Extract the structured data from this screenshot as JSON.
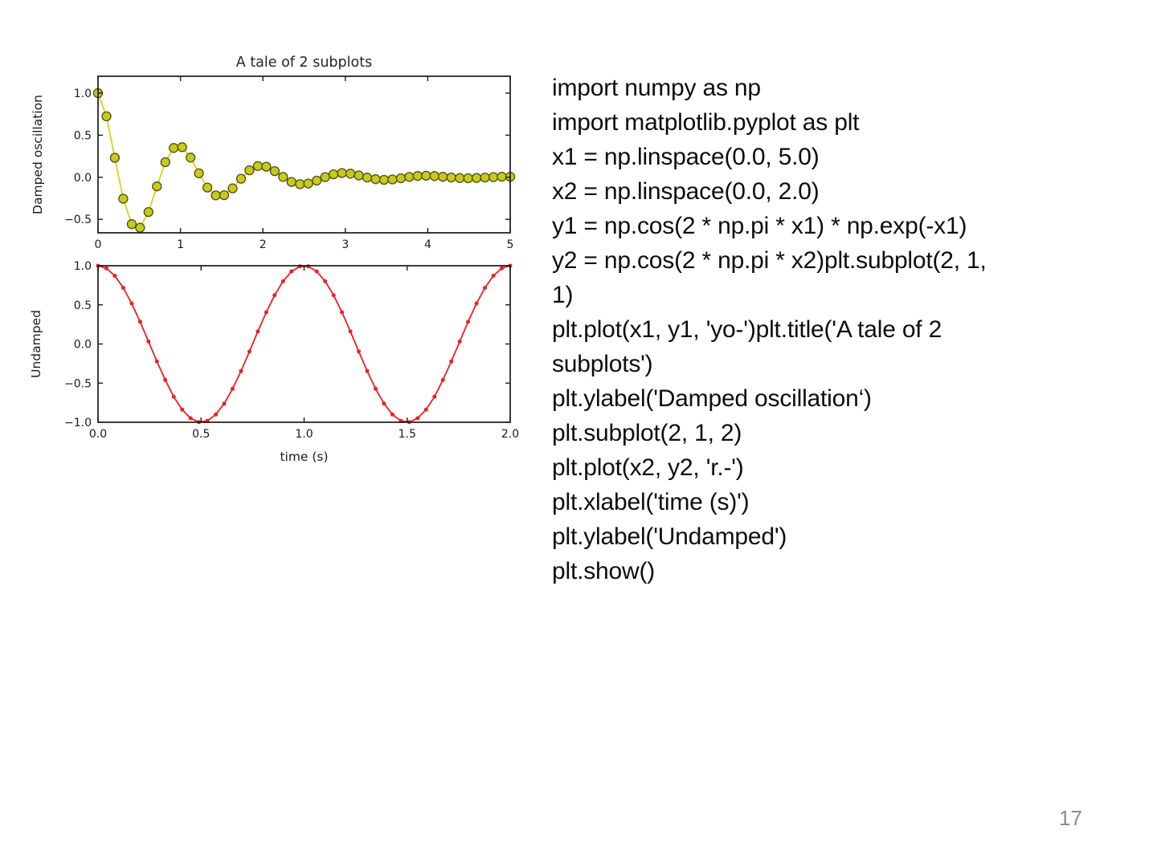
{
  "page": {
    "number": "17"
  },
  "code_block": {
    "lines": [
      "import numpy as np",
      "import matplotlib.pyplot as plt",
      "x1 = np.linspace(0.0, 5.0)",
      "x2 = np.linspace(0.0, 2.0)",
      "y1 = np.cos(2 * np.pi * x1) * np.exp(-x1)",
      "y2 = np.cos(2 * np.pi * x2)plt.subplot(2, 1,",
      "1)",
      "plt.plot(x1, y1, 'yo-')plt.title('A tale of 2",
      "subplots')",
      "plt.ylabel('Damped oscillation‘)",
      "plt.subplot(2, 1, 2)",
      "plt.plot(x2, y2, 'r.-')",
      "plt.xlabel('time (s)')",
      "plt.ylabel('Undamped')",
      "plt.show()"
    ]
  },
  "chart_data": [
    {
      "type": "line",
      "title": "A tale of 2 subplots",
      "xlabel": "",
      "ylabel": "Damped oscillation",
      "legend": null,
      "grid": false,
      "style": "yo-",
      "line_color": "#d3d320",
      "marker": "circle",
      "marker_fill": "#c6ca1d",
      "marker_edge": "#4f4f12",
      "marker_size": 11,
      "xlim": [
        0,
        5
      ],
      "ylim": [
        -0.66,
        1.2
      ],
      "xticks": {
        "values": [
          0,
          1,
          2,
          3,
          4,
          5
        ],
        "labels": [
          "0",
          "1",
          "2",
          "3",
          "4",
          "5"
        ]
      },
      "yticks": {
        "values": [
          1.0,
          0.5,
          0.0,
          -0.5
        ],
        "labels": [
          "1.0",
          "0.5",
          "0.0",
          "−0.5"
        ]
      },
      "x": [
        0,
        0.102,
        0.2041,
        0.3061,
        0.4082,
        0.5102,
        0.6122,
        0.7143,
        0.8163,
        0.9184,
        1.0204,
        1.1224,
        1.2245,
        1.3265,
        1.4286,
        1.5306,
        1.6327,
        1.7347,
        1.8367,
        1.9388,
        2.0408,
        2.1429,
        2.2449,
        2.3469,
        2.449,
        2.551,
        2.6531,
        2.7551,
        2.8571,
        2.9592,
        3.0612,
        3.1633,
        3.2653,
        3.3673,
        3.4694,
        3.5714,
        3.6735,
        3.7755,
        3.8776,
        3.9796,
        4.0816,
        4.1837,
        4.2857,
        4.3878,
        4.4898,
        4.5918,
        4.6939,
        4.7959,
        4.898,
        5
      ],
      "y": [
        1,
        0.7236,
        0.2319,
        -0.2543,
        -0.5573,
        -0.5992,
        -0.4129,
        -0.1089,
        0.179,
        0.3478,
        0.3575,
        0.2337,
        0.0469,
        -0.1219,
        -0.2159,
        -0.2124,
        -0.1314,
        -0.017,
        0.0826,
        0.1334,
        0.1257,
        0.0732,
        0.0034,
        -0.0548,
        -0.082,
        -0.074,
        -0.0403,
        0.002,
        0.0358,
        0.0502,
        0.0434,
        0.0219,
        -0.0037,
        -0.0232,
        -0.0306,
        -0.0253,
        -0.0117,
        0.0037,
        0.0149,
        0.0185,
        0.0147,
        0.0062,
        -0.0031,
        -0.0095,
        -0.0112,
        -0.0085,
        -0.0032,
        0.0024,
        0.006,
        0.0067
      ]
    },
    {
      "type": "line",
      "title": "",
      "xlabel": "time (s)",
      "ylabel": "Undamped",
      "legend": null,
      "grid": false,
      "style": "r.-",
      "line_color": "#ee1f1f",
      "marker": "dot",
      "marker_fill": "#ee1f1f",
      "marker_edge": "none",
      "marker_size": 5,
      "xlim": [
        0,
        2
      ],
      "ylim": [
        -1,
        1
      ],
      "xticks": {
        "values": [
          0,
          0.5,
          1,
          1.5,
          2
        ],
        "labels": [
          "0.0",
          "0.5",
          "1.0",
          "1.5",
          "2.0"
        ]
      },
      "yticks": {
        "values": [
          1.0,
          0.5,
          0.0,
          -0.5,
          -1.0
        ],
        "labels": [
          "1.0",
          "0.5",
          "0.0",
          "−0.5",
          "−1.0"
        ]
      },
      "x": [
        0,
        0.0408,
        0.0816,
        0.1224,
        0.1633,
        0.2041,
        0.2449,
        0.2857,
        0.3265,
        0.3673,
        0.4082,
        0.449,
        0.4898,
        0.5306,
        0.5714,
        0.6122,
        0.6531,
        0.6939,
        0.7347,
        0.7755,
        0.8163,
        0.8571,
        0.898,
        0.9388,
        0.9796,
        1.0204,
        1.0612,
        1.102,
        1.1429,
        1.1837,
        1.2245,
        1.2653,
        1.3061,
        1.3469,
        1.3878,
        1.4286,
        1.4694,
        1.5102,
        1.551,
        1.5918,
        1.6327,
        1.6735,
        1.7143,
        1.7551,
        1.7959,
        1.8367,
        1.8776,
        1.9184,
        1.9592,
        2
      ],
      "y": [
        1,
        0.9673,
        0.8713,
        0.7182,
        0.5184,
        0.2844,
        0.0321,
        -0.2225,
        -0.4595,
        -0.6725,
        -0.8381,
        -0.949,
        -0.9979,
        -0.9816,
        -0.901,
        -0.7616,
        -0.5728,
        -0.3454,
        -0.096,
        0.1597,
        0.4048,
        0.6235,
        0.8013,
        0.9269,
        0.9918,
        0.9918,
        0.9269,
        0.8013,
        0.6235,
        0.4048,
        0.1597,
        -0.096,
        -0.3454,
        -0.5728,
        -0.7616,
        -0.901,
        -0.9816,
        -0.9979,
        -0.949,
        -0.8381,
        -0.6725,
        -0.4595,
        -0.2225,
        0.0321,
        0.2844,
        0.5184,
        0.7182,
        0.8713,
        0.9673,
        1
      ]
    }
  ],
  "colors": {
    "axis": "#1a1a1a",
    "tick_label": "#1a1a1a",
    "title": "#262626",
    "code_text": "#0d0d0d",
    "page_number": "#8c8c8c"
  }
}
